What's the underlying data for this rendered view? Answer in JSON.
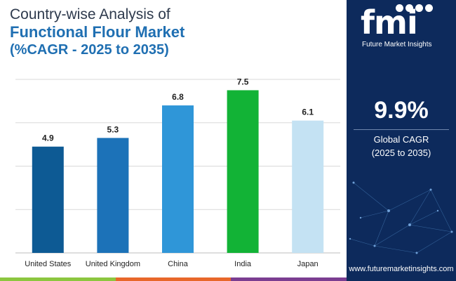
{
  "title": {
    "line1": "Country-wise Analysis of",
    "line2": "Functional Flour Market",
    "line3": "(%CAGR - 2025 to 2035)"
  },
  "chart_data": {
    "type": "bar",
    "title": "Country-wise Analysis of Functional Flour Market (%CAGR - 2025 to 2035)",
    "categories": [
      "United States",
      "United Kingdom",
      "China",
      "India",
      "Japan"
    ],
    "values": [
      4.9,
      5.3,
      6.8,
      7.5,
      6.1
    ],
    "colors": [
      "#0d5a94",
      "#1c72b8",
      "#2f96d8",
      "#12b336",
      "#c4e2f3"
    ],
    "ylim": [
      0,
      8
    ],
    "gridlines": [
      2,
      4,
      6,
      8
    ],
    "grid": true,
    "xlabel": "",
    "ylabel": ""
  },
  "panel": {
    "logo_text": "fmi",
    "logo_subtitle": "Future Market Insights",
    "stat_value": "9.9%",
    "stat_label_line1": "Global CAGR",
    "stat_label_line2": "(2025 to 2035)",
    "website": "www.futuremarketinsights.com",
    "background": "#0d2a5c"
  },
  "bottom_bar_colors": [
    "#8cc63f",
    "#e8672a",
    "#7b3d91"
  ]
}
